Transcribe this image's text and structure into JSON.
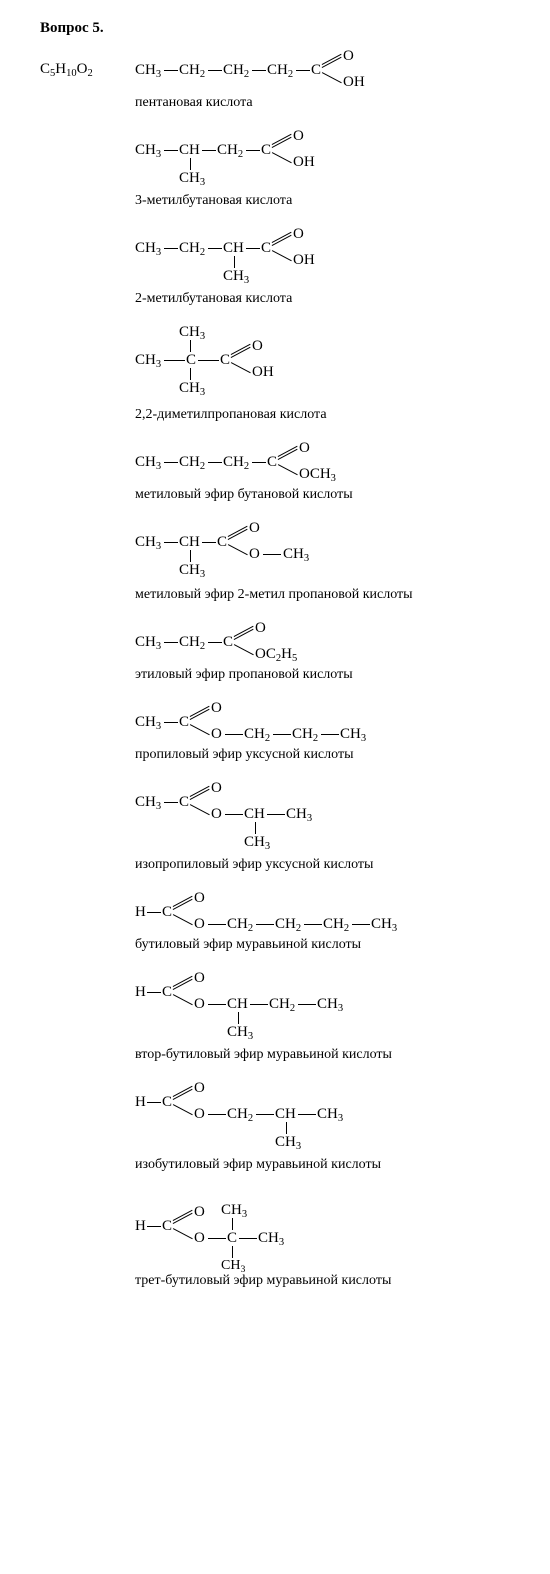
{
  "title": "Вопрос 5.",
  "formula": "C<sub>5</sub>H<sub>10</sub>O<sub>2</sub>",
  "compounds": [
    {
      "name": "пентановая кислота"
    },
    {
      "name": "3-метилбутановая кислота"
    },
    {
      "name": "2-метилбутановая кислота"
    },
    {
      "name": "2,2-диметилпропановая кислота"
    },
    {
      "name": "метиловый эфир бутановой кислоты"
    },
    {
      "name": "метиловый эфир 2-метил пропановой кислоты"
    },
    {
      "name": "этиловый эфир пропановой кислоты"
    },
    {
      "name": "пропиловый эфир уксусной кислоты"
    },
    {
      "name": "изопропиловый эфир уксусной кислоты"
    },
    {
      "name": "бутиловый эфир муравьиной кислоты"
    },
    {
      "name": "втор-бутиловый эфир муравьиной кислоты"
    },
    {
      "name": "изобутиловый эфир муравьиной кислоты"
    },
    {
      "name": "трет-бутиловый эфир муравьиной кислоты"
    }
  ],
  "frag": {
    "CH3": "CH<sub>3</sub>",
    "CH2": "CH<sub>2</sub>",
    "CH": "CH",
    "C": "C",
    "H": "H",
    "O": "O",
    "OH": "OH",
    "OCH3": "OCH<sub>3</sub>",
    "OC2H5": "OC<sub>2</sub>H<sub>5</sub>"
  }
}
